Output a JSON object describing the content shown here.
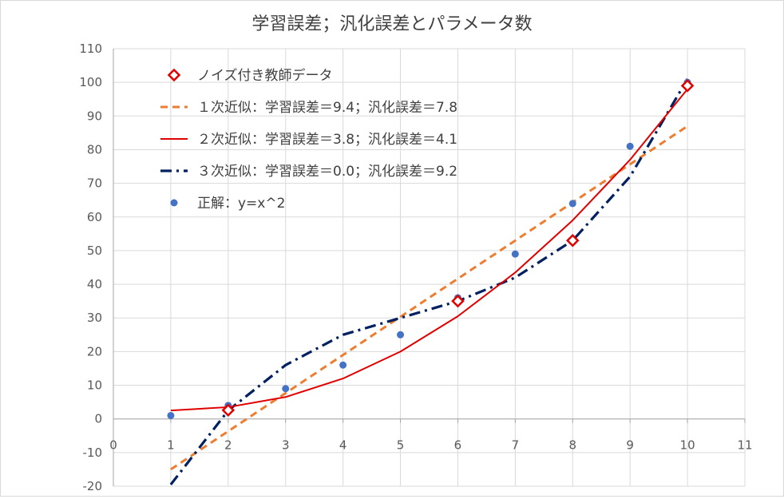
{
  "chart_data": {
    "type": "scatter",
    "title": "学習誤差；汎化誤差とパラメータ数",
    "xlim": [
      0,
      11
    ],
    "ylim": [
      -20,
      110
    ],
    "x_ticks": [
      0,
      1,
      2,
      3,
      4,
      5,
      6,
      7,
      8,
      9,
      10,
      11
    ],
    "y_ticks": [
      -20,
      -10,
      0,
      10,
      20,
      30,
      40,
      50,
      60,
      70,
      80,
      90,
      100,
      110
    ],
    "grid": true,
    "legend_position": "top-left",
    "series": [
      {
        "name": "ノイズ付き教師データ",
        "kind": "marker-diamond",
        "color": "#e00000",
        "x": [
          2,
          6,
          8,
          10
        ],
        "y": [
          2.6,
          35,
          53,
          99
        ]
      },
      {
        "name": "１次近似：学習誤差＝9.4；汎化誤差＝7.8",
        "kind": "line-dashed",
        "color": "#ed7d31",
        "x": [
          1,
          10
        ],
        "y": [
          -15,
          87
        ]
      },
      {
        "name": "２次近似：学習誤差＝3.8；汎化誤差＝4.1",
        "kind": "line-solid",
        "color": "#e00000",
        "x": [
          1,
          2,
          3,
          4,
          5,
          6,
          7,
          8,
          9,
          10
        ],
        "y": [
          2.5,
          3.5,
          6.5,
          12,
          20,
          30.5,
          43.5,
          59,
          77,
          98
        ]
      },
      {
        "name": "３次近似：学習誤差＝0.0；汎化誤差＝9.2",
        "kind": "line-dashdot",
        "color": "#002060",
        "x": [
          1,
          2,
          3,
          4,
          5,
          6,
          7,
          8,
          9,
          10
        ],
        "y": [
          -19.5,
          2.5,
          16,
          25,
          30,
          35,
          42,
          53,
          72,
          101
        ]
      },
      {
        "name": "正解：y=x^2",
        "kind": "marker-dot",
        "color": "#4472c4",
        "x": [
          1,
          2,
          3,
          4,
          5,
          6,
          7,
          8,
          9,
          10
        ],
        "y": [
          1,
          4,
          9,
          16,
          25,
          36,
          49,
          64,
          81,
          100
        ]
      }
    ]
  }
}
